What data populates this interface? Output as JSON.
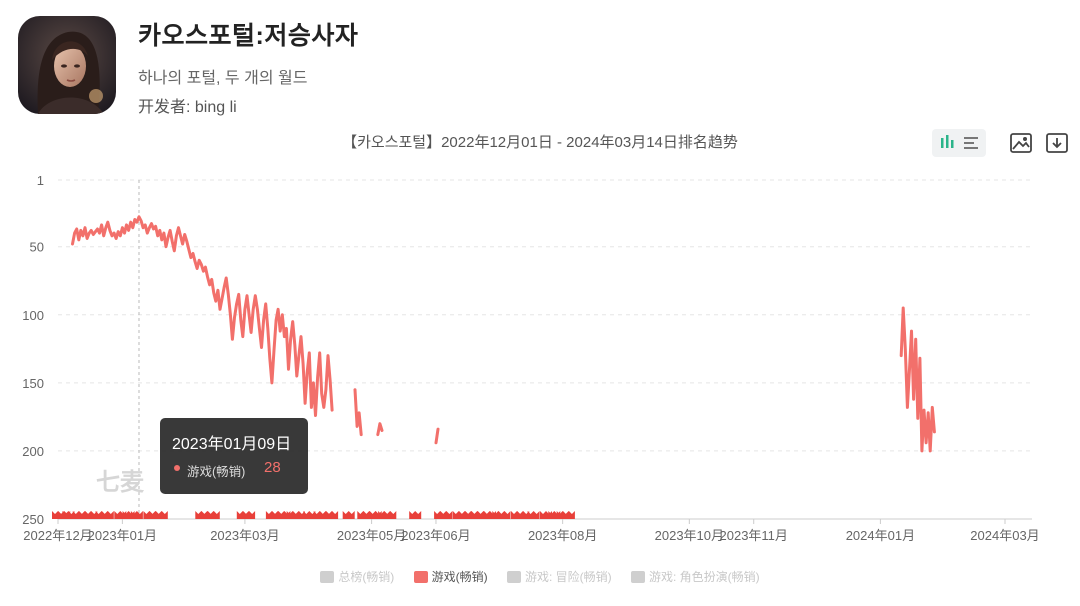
{
  "app": {
    "title": "카오스포털:저승사자",
    "subtitle": "하나의 포털, 두 개의 월드",
    "developer": "开发者: bing li"
  },
  "chart_title": "【카오스포털】2022年12月01日 - 2024年03月14日排名趋势",
  "watermark": "七麦",
  "tooltip": {
    "date": "2023年01月09日",
    "series": "游戏(畅销)",
    "value": "28"
  },
  "legend": [
    {
      "label": "总榜(畅销)",
      "active": false
    },
    {
      "label": "游戏(畅销)",
      "active": true
    },
    {
      "label": "游戏: 冒险(畅销)",
      "active": false
    },
    {
      "label": "游戏: 角色扮演(畅销)",
      "active": false
    }
  ],
  "colors": {
    "series": "#f2706b",
    "grid": "#e5e5e5",
    "axis_text": "#666666",
    "toolbar_active": "#2bb48a"
  },
  "icons": [
    "bar-chart-icon",
    "list-icon",
    "image-icon",
    "download-icon"
  ],
  "chart_data": {
    "type": "line",
    "title": "【카오스포털】2022年12月01日 - 2024年03月14日排名趋势",
    "y_inverted": true,
    "ylim": [
      1,
      250
    ],
    "yticks": [
      1,
      50,
      100,
      150,
      200,
      250
    ],
    "xlim": [
      "2022-12-01",
      "2024-03-14"
    ],
    "xticks": [
      {
        "date": "2022-12-01",
        "label": "2022年12月"
      },
      {
        "date": "2023-01-01",
        "label": "2023年01月"
      },
      {
        "date": "2023-03-01",
        "label": "2023年03月"
      },
      {
        "date": "2023-05-01",
        "label": "2023年05月"
      },
      {
        "date": "2023-06-01",
        "label": "2023年06月"
      },
      {
        "date": "2023-08-01",
        "label": "2023年08月"
      },
      {
        "date": "2023-10-01",
        "label": "2023年10月"
      },
      {
        "date": "2023-11-01",
        "label": "2023年11月"
      },
      {
        "date": "2024-01-01",
        "label": "2024年01月"
      },
      {
        "date": "2024-03-01",
        "label": "2024年03月"
      }
    ],
    "crosshair_date": "2023-01-09",
    "series": [
      {
        "name": "游戏(畅销)",
        "segments": [
          [
            [
              "2022-12-08",
              48
            ],
            [
              "2022-12-09",
              40
            ],
            [
              "2022-12-10",
              37
            ],
            [
              "2022-12-11",
              45
            ],
            [
              "2022-12-12",
              38
            ],
            [
              "2022-12-13",
              42
            ],
            [
              "2022-12-14",
              36
            ],
            [
              "2022-12-15",
              44
            ],
            [
              "2022-12-16",
              40
            ],
            [
              "2022-12-17",
              38
            ],
            [
              "2022-12-18",
              41
            ],
            [
              "2022-12-19",
              39
            ],
            [
              "2022-12-20",
              37
            ],
            [
              "2022-12-21",
              40
            ],
            [
              "2022-12-22",
              34
            ],
            [
              "2022-12-23",
              42
            ],
            [
              "2022-12-24",
              36
            ],
            [
              "2022-12-25",
              32
            ],
            [
              "2022-12-26",
              38
            ],
            [
              "2022-12-27",
              42
            ],
            [
              "2022-12-28",
              40
            ],
            [
              "2022-12-29",
              44
            ],
            [
              "2022-12-30",
              39
            ],
            [
              "2022-12-31",
              42
            ],
            [
              "2023-01-01",
              36
            ],
            [
              "2023-01-02",
              40
            ],
            [
              "2023-01-03",
              34
            ],
            [
              "2023-01-04",
              38
            ],
            [
              "2023-01-05",
              32
            ],
            [
              "2023-01-06",
              36
            ],
            [
              "2023-01-07",
              30
            ],
            [
              "2023-01-08",
              32
            ],
            [
              "2023-01-09",
              28
            ],
            [
              "2023-01-10",
              31
            ],
            [
              "2023-01-11",
              36
            ],
            [
              "2023-01-12",
              34
            ],
            [
              "2023-01-13",
              40
            ],
            [
              "2023-01-14",
              36
            ],
            [
              "2023-01-15",
              33
            ],
            [
              "2023-01-16",
              37
            ],
            [
              "2023-01-17",
              35
            ],
            [
              "2023-01-18",
              42
            ],
            [
              "2023-01-19",
              38
            ],
            [
              "2023-01-20",
              45
            ],
            [
              "2023-01-21",
              40
            ],
            [
              "2023-01-22",
              50
            ],
            [
              "2023-01-23",
              43
            ],
            [
              "2023-01-24",
              38
            ],
            [
              "2023-01-25",
              46
            ],
            [
              "2023-01-26",
              53
            ],
            [
              "2023-01-27",
              42
            ],
            [
              "2023-01-28",
              36
            ],
            [
              "2023-01-29",
              42
            ],
            [
              "2023-01-30",
              48
            ],
            [
              "2023-01-31",
              41
            ],
            [
              "2023-02-01",
              46
            ],
            [
              "2023-02-02",
              52
            ],
            [
              "2023-02-03",
              58
            ],
            [
              "2023-02-04",
              55
            ],
            [
              "2023-02-05",
              61
            ],
            [
              "2023-02-06",
              66
            ],
            [
              "2023-02-07",
              60
            ],
            [
              "2023-02-08",
              63
            ],
            [
              "2023-02-09",
              68
            ],
            [
              "2023-02-10",
              65
            ],
            [
              "2023-02-11",
              72
            ],
            [
              "2023-02-12",
              78
            ],
            [
              "2023-02-13",
              74
            ],
            [
              "2023-02-14",
              84
            ],
            [
              "2023-02-15",
              90
            ],
            [
              "2023-02-16",
              82
            ],
            [
              "2023-02-17",
              96
            ],
            [
              "2023-02-18",
              88
            ],
            [
              "2023-02-19",
              80
            ],
            [
              "2023-02-20",
              73
            ],
            [
              "2023-02-21",
              85
            ],
            [
              "2023-02-22",
              100
            ],
            [
              "2023-02-23",
              118
            ],
            [
              "2023-02-24",
              102
            ],
            [
              "2023-02-25",
              92
            ],
            [
              "2023-02-26",
              85
            ],
            [
              "2023-02-27",
              104
            ],
            [
              "2023-02-28",
              116
            ],
            [
              "2023-03-01",
              96
            ],
            [
              "2023-03-02",
              86
            ],
            [
              "2023-03-03",
              100
            ],
            [
              "2023-03-04",
              113
            ],
            [
              "2023-03-05",
              96
            ],
            [
              "2023-03-06",
              86
            ],
            [
              "2023-03-07",
              96
            ],
            [
              "2023-03-08",
              110
            ],
            [
              "2023-03-09",
              124
            ],
            [
              "2023-03-10",
              104
            ],
            [
              "2023-03-11",
              92
            ],
            [
              "2023-03-12",
              110
            ],
            [
              "2023-03-13",
              132
            ],
            [
              "2023-03-14",
              150
            ],
            [
              "2023-03-15",
              126
            ],
            [
              "2023-03-16",
              104
            ],
            [
              "2023-03-17",
              96
            ],
            [
              "2023-03-18",
              112
            ],
            [
              "2023-03-19",
              100
            ],
            [
              "2023-03-20",
              116
            ],
            [
              "2023-03-21",
              110
            ],
            [
              "2023-03-22",
              140
            ],
            [
              "2023-03-23",
              118
            ],
            [
              "2023-03-24",
              105
            ],
            [
              "2023-03-25",
              122
            ],
            [
              "2023-03-26",
              145
            ],
            [
              "2023-03-27",
              130
            ],
            [
              "2023-03-28",
              116
            ],
            [
              "2023-03-29",
              136
            ],
            [
              "2023-03-30",
              165
            ],
            [
              "2023-03-31",
              142
            ],
            [
              "2023-04-01",
              128
            ],
            [
              "2023-04-02",
              168
            ],
            [
              "2023-04-03",
              150
            ],
            [
              "2023-04-04",
              174
            ],
            [
              "2023-04-05",
              146
            ],
            [
              "2023-04-06",
              128
            ],
            [
              "2023-04-07",
              158
            ],
            [
              "2023-04-08",
              168
            ],
            [
              "2023-04-09",
              155
            ],
            [
              "2023-04-10",
              130
            ],
            [
              "2023-04-11",
              148
            ],
            [
              "2023-04-12",
              170
            ]
          ],
          [
            [
              "2023-04-23",
              155
            ],
            [
              "2023-04-24",
              182
            ],
            [
              "2023-04-25",
              172
            ],
            [
              "2023-04-26",
              188
            ]
          ],
          [
            [
              "2023-05-04",
              188
            ],
            [
              "2023-05-05",
              180
            ],
            [
              "2023-05-06",
              185
            ]
          ],
          [
            [
              "2023-06-01",
              194
            ],
            [
              "2023-06-02",
              184
            ]
          ],
          [
            [
              "2024-01-11",
              130
            ],
            [
              "2024-01-12",
              95
            ],
            [
              "2024-01-13",
              125
            ],
            [
              "2024-01-14",
              168
            ],
            [
              "2024-01-15",
              140
            ],
            [
              "2024-01-16",
              112
            ],
            [
              "2024-01-17",
              162
            ],
            [
              "2024-01-18",
              118
            ],
            [
              "2024-01-19",
              176
            ],
            [
              "2024-01-20",
              132
            ],
            [
              "2024-01-21",
              200
            ],
            [
              "2024-01-22",
              170
            ],
            [
              "2024-01-23",
              194
            ],
            [
              "2024-01-24",
              172
            ],
            [
              "2024-01-25",
              200
            ],
            [
              "2024-01-26",
              168
            ],
            [
              "2024-01-27",
              186
            ]
          ]
        ],
        "floor_markers": [
          "2022-12-01",
          "2022-12-04",
          "2022-12-06",
          "2022-12-11",
          "2022-12-14",
          "2022-12-17",
          "2022-12-22",
          "2022-12-25",
          "2022-12-31",
          "2023-01-04",
          "2023-01-08",
          "2023-01-14",
          "2023-01-17",
          "2023-01-20",
          "2023-02-08",
          "2023-02-11",
          "2023-02-14",
          "2023-02-28",
          "2023-03-03",
          "2023-03-14",
          "2023-03-17",
          "2023-03-20",
          "2023-03-24",
          "2023-03-27",
          "2023-04-01",
          "2023-04-06",
          "2023-04-09",
          "2023-04-12",
          "2023-04-20",
          "2023-04-27",
          "2023-04-30",
          "2023-05-03",
          "2023-05-07",
          "2023-05-10",
          "2023-05-22",
          "2023-06-03",
          "2023-06-06",
          "2023-06-12",
          "2023-06-15",
          "2023-06-18",
          "2023-06-21",
          "2023-06-24",
          "2023-06-27",
          "2023-07-01",
          "2023-07-04",
          "2023-07-10",
          "2023-07-13",
          "2023-07-18",
          "2023-07-24",
          "2023-07-28",
          "2023-08-01",
          "2023-08-04"
        ]
      }
    ]
  }
}
